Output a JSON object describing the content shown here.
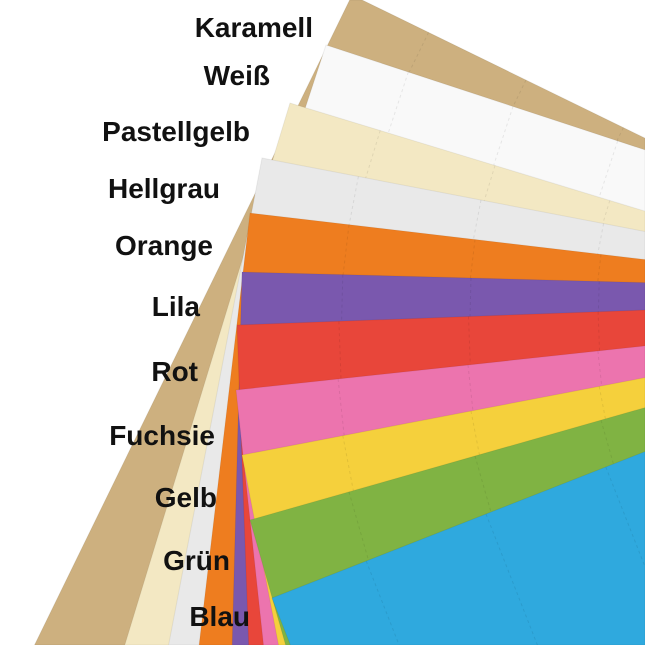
{
  "colors": [
    {
      "name": "Karamell",
      "hex": "#cdb07f"
    },
    {
      "name": "Weiß",
      "hex": "#f9f9f9"
    },
    {
      "name": "Pastellgelb",
      "hex": "#f3e8c3"
    },
    {
      "name": "Hellgrau",
      "hex": "#e9e9e9"
    },
    {
      "name": "Orange",
      "hex": "#ee7d1f"
    },
    {
      "name": "Lila",
      "hex": "#7a58ae"
    },
    {
      "name": "Rot",
      "hex": "#e8463a"
    },
    {
      "name": "Fuchsie",
      "hex": "#ec74ae"
    },
    {
      "name": "Gelb",
      "hex": "#f5d03c"
    },
    {
      "name": "Grün",
      "hex": "#80b343"
    },
    {
      "name": "Blau",
      "hex": "#2fa9de"
    }
  ]
}
